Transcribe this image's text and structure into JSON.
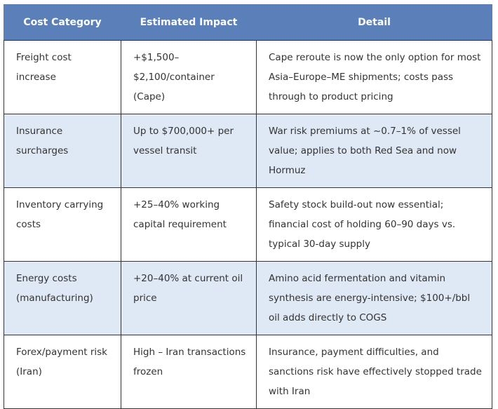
{
  "table": {
    "header": [
      "Cost Category",
      "Estimated Impact",
      "Detail"
    ],
    "rows": [
      [
        "Freight cost increase",
        "+$1,500–$2,100/container (Cape)",
        "Cape reroute is now the only option for most Asia–Europe–ME shipments; costs pass through to product pricing"
      ],
      [
        "Insurance surcharges",
        "Up to $700,000+ per vessel transit",
        "War risk premiums at ~0.7–1% of vessel value; applies to both Red Sea and now Hormuz"
      ],
      [
        "Inventory carrying costs",
        "+25–40% working capital requirement",
        "Safety stock build-out now essential; financial cost of holding 60–90 days vs. typical 30-day supply"
      ],
      [
        "Energy costs (manufacturing)",
        "+20–40% at current oil price",
        "Amino acid fermentation and vitamin synthesis are energy-intensive; $100+/bbl oil adds directly to COGS"
      ],
      [
        "Forex/payment risk (Iran)",
        "High – Iran transactions frozen",
        "Insurance, payment difficulties, and sanctions risk have effectively stopped trade with Iran"
      ]
    ]
  }
}
